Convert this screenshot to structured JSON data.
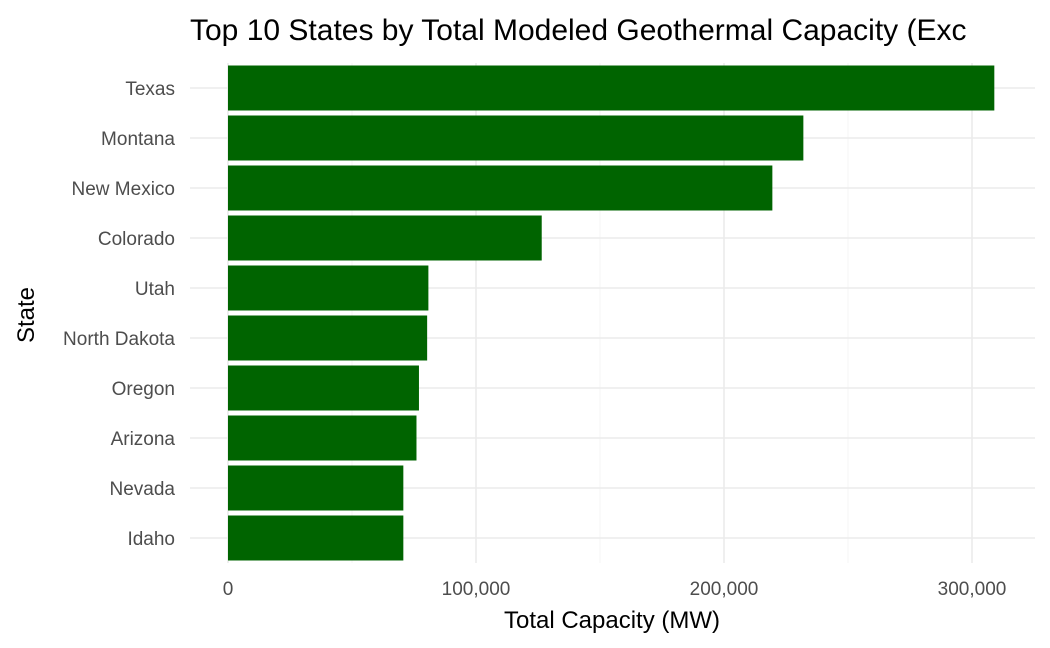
{
  "chart_data": {
    "type": "bar",
    "orientation": "horizontal",
    "title": "Top 10 States by Total Modeled Geothermal Capacity (Exc",
    "xlabel": "Total Capacity (MW)",
    "ylabel": "State",
    "categories": [
      "Texas",
      "Montana",
      "New Mexico",
      "Colorado",
      "Utah",
      "North Dakota",
      "Oregon",
      "Arizona",
      "Nevada",
      "Idaho"
    ],
    "values": [
      309000,
      232000,
      219500,
      126500,
      80800,
      80300,
      77000,
      76000,
      70700,
      70700
    ],
    "xlim": [
      0,
      325000
    ],
    "x_ticks": [
      0,
      100000,
      200000,
      300000
    ],
    "x_tick_labels": [
      "0",
      "100,000",
      "200,000",
      "300,000"
    ],
    "bar_color": "#006400",
    "grid": true,
    "legend": "none"
  }
}
